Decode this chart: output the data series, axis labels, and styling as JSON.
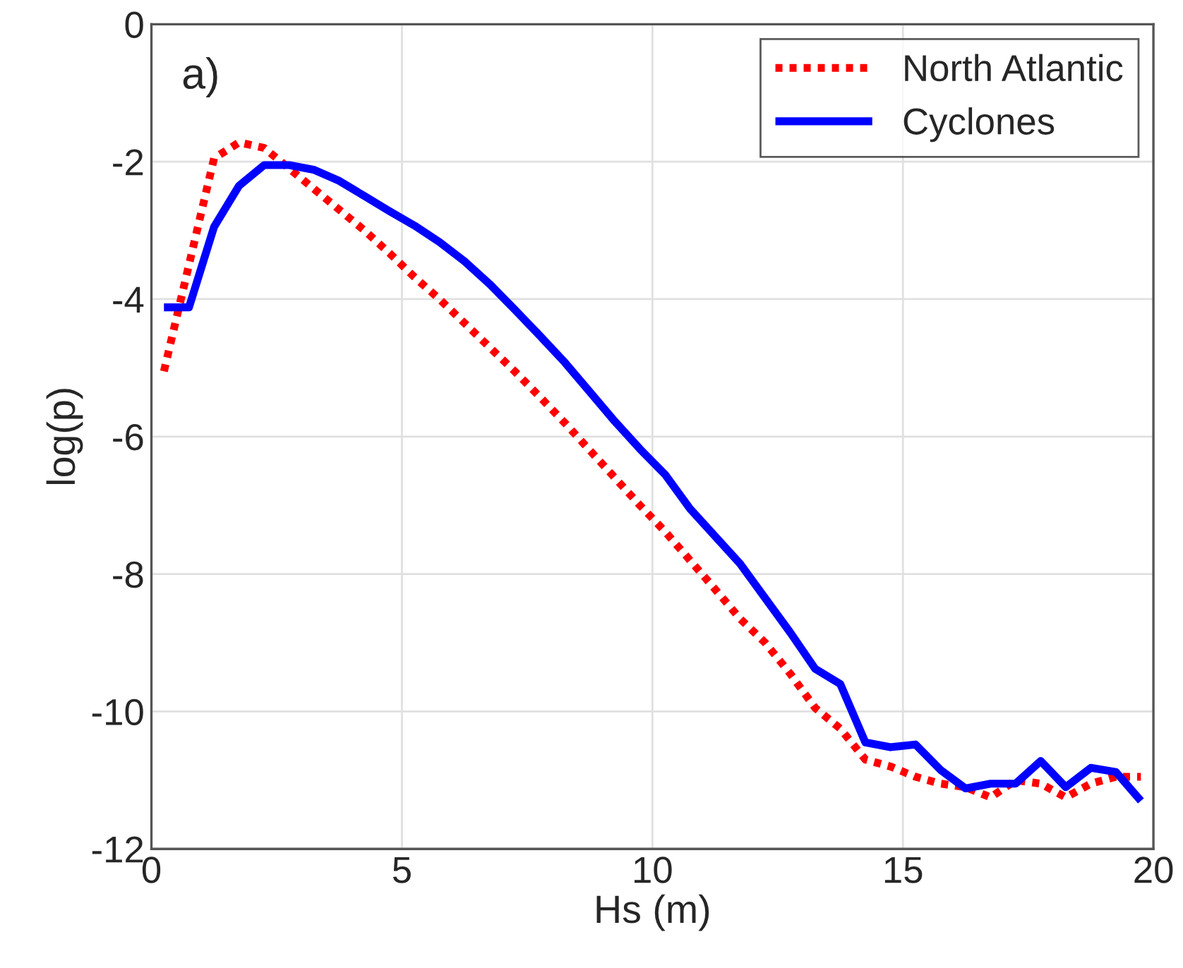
{
  "chart_data": {
    "type": "line",
    "xlabel": "Hs (m)",
    "ylabel": "log(p)",
    "annotations": [
      "a)"
    ],
    "xlim": [
      0,
      20
    ],
    "ylim": [
      -12,
      0
    ],
    "xticks": [
      0,
      5,
      10,
      15,
      20
    ],
    "yticks": [
      -12,
      -10,
      -8,
      -6,
      -4,
      -2,
      0
    ],
    "grid": true,
    "legend": "top right",
    "x": [
      0.25,
      0.75,
      1.25,
      1.75,
      2.25,
      2.75,
      3.25,
      3.75,
      4.25,
      4.75,
      5.25,
      5.75,
      6.25,
      6.75,
      7.25,
      7.75,
      8.25,
      8.75,
      9.25,
      9.75,
      10.25,
      10.75,
      11.25,
      11.75,
      12.25,
      12.75,
      13.25,
      13.75,
      14.25,
      14.75,
      15.25,
      15.75,
      16.25,
      16.75,
      17.25,
      17.75,
      18.25,
      18.75,
      19.25,
      19.75
    ],
    "series": [
      {
        "name": "North Atlantic",
        "color": "#ff0000",
        "line_style": "dotted",
        "values": [
          -5.05,
          -3.5,
          -1.95,
          -1.72,
          -1.8,
          -2.1,
          -2.4,
          -2.7,
          -3.0,
          -3.33,
          -3.68,
          -4.0,
          -4.35,
          -4.7,
          -5.05,
          -5.42,
          -5.8,
          -6.2,
          -6.6,
          -7.0,
          -7.38,
          -7.8,
          -8.22,
          -8.65,
          -9.0,
          -9.45,
          -9.95,
          -10.25,
          -10.7,
          -10.8,
          -10.95,
          -11.05,
          -11.1,
          -11.25,
          -11.0,
          -11.05,
          -11.25,
          -11.05,
          -10.95,
          -10.95
        ]
      },
      {
        "name": "Cyclones",
        "color": "#0000ff",
        "line_style": "solid",
        "values": [
          -4.12,
          -4.12,
          -2.95,
          -2.35,
          -2.05,
          -2.05,
          -2.12,
          -2.28,
          -2.5,
          -2.72,
          -2.93,
          -3.17,
          -3.45,
          -3.78,
          -4.15,
          -4.53,
          -4.92,
          -5.35,
          -5.78,
          -6.18,
          -6.55,
          -7.05,
          -7.45,
          -7.85,
          -8.35,
          -8.85,
          -9.38,
          -9.6,
          -10.45,
          -10.52,
          -10.48,
          -10.85,
          -11.12,
          -11.05,
          -11.05,
          -10.72,
          -11.1,
          -10.82,
          -10.88,
          -11.3
        ]
      }
    ]
  }
}
